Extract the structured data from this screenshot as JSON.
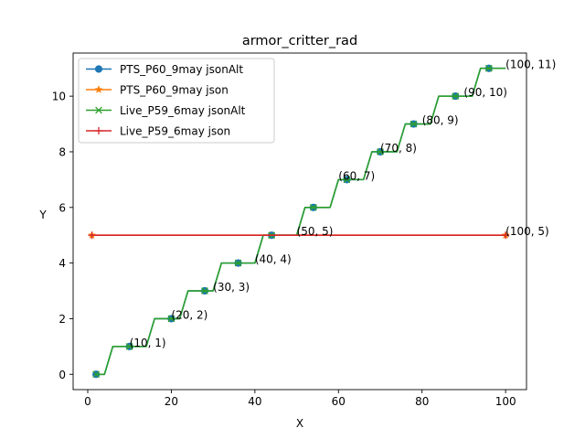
{
  "chart_data": {
    "type": "line",
    "title": "armor_critter_rad",
    "xlabel": "X",
    "ylabel": "Y",
    "xlim": [
      -3.5,
      105
    ],
    "ylim": [
      -0.55,
      11.55
    ],
    "x_ticks": [
      0,
      20,
      40,
      60,
      80,
      100
    ],
    "y_ticks": [
      0,
      2,
      4,
      6,
      8,
      10
    ],
    "grid": false,
    "legend_position": "top-left",
    "series": [
      {
        "name": "PTS_P60_9may jsonAlt",
        "color": "#1f77b4",
        "marker": "circle",
        "marker_x": [
          2,
          10,
          20,
          28,
          36,
          44,
          54,
          62,
          70,
          78,
          88,
          96
        ],
        "marker_y": [
          0,
          1,
          2,
          3,
          4,
          5,
          6,
          7,
          8,
          9,
          10,
          11
        ],
        "line_x": [
          2,
          4,
          6,
          10,
          14,
          16,
          20,
          22,
          24,
          28,
          30,
          32,
          36,
          40,
          42,
          44,
          48,
          50,
          52,
          54,
          58,
          60,
          62,
          66,
          68,
          70,
          74,
          76,
          78,
          82,
          84,
          86,
          88,
          92,
          94,
          96,
          100
        ],
        "line_y": [
          0,
          0,
          1,
          1,
          1,
          2,
          2,
          2,
          3,
          3,
          3,
          4,
          4,
          4,
          5,
          5,
          5,
          5,
          6,
          6,
          6,
          7,
          7,
          7,
          8,
          8,
          8,
          9,
          9,
          9,
          10,
          10,
          10,
          10,
          11,
          11,
          11
        ]
      },
      {
        "name": "PTS_P60_9may json",
        "color": "#ff7f0e",
        "marker": "star",
        "marker_x": [
          1,
          100
        ],
        "marker_y": [
          5,
          5
        ],
        "line_x": [
          1,
          100
        ],
        "line_y": [
          5,
          5
        ]
      },
      {
        "name": "Live_P59_6may jsonAlt",
        "color": "#2ca02c",
        "marker": "x",
        "marker_x": [
          2,
          10,
          20,
          28,
          36,
          44,
          54,
          62,
          70,
          78,
          88,
          96
        ],
        "marker_y": [
          0,
          1,
          2,
          3,
          4,
          5,
          6,
          7,
          8,
          9,
          10,
          11
        ],
        "line_x": [
          2,
          4,
          6,
          10,
          14,
          16,
          20,
          22,
          24,
          28,
          30,
          32,
          36,
          40,
          42,
          44,
          48,
          50,
          52,
          54,
          58,
          60,
          62,
          66,
          68,
          70,
          74,
          76,
          78,
          82,
          84,
          86,
          88,
          92,
          94,
          96,
          100
        ],
        "line_y": [
          0,
          0,
          1,
          1,
          1,
          2,
          2,
          2,
          3,
          3,
          3,
          4,
          4,
          4,
          5,
          5,
          5,
          5,
          6,
          6,
          6,
          7,
          7,
          7,
          8,
          8,
          8,
          9,
          9,
          9,
          10,
          10,
          10,
          10,
          11,
          11,
          11
        ]
      },
      {
        "name": "Live_P59_6may json",
        "color": "#d62728",
        "marker": "plus",
        "marker_x": [
          1,
          100
        ],
        "marker_y": [
          5,
          5
        ],
        "line_x": [
          1,
          100
        ],
        "line_y": [
          5,
          5
        ]
      }
    ],
    "annotations": [
      {
        "text": "(10, 1)",
        "x": 10,
        "y": 1
      },
      {
        "text": "(20, 2)",
        "x": 20,
        "y": 2
      },
      {
        "text": "(30, 3)",
        "x": 30,
        "y": 3
      },
      {
        "text": "(40, 4)",
        "x": 40,
        "y": 4
      },
      {
        "text": "(50, 5)",
        "x": 50,
        "y": 5
      },
      {
        "text": "(60, 7)",
        "x": 60,
        "y": 7
      },
      {
        "text": "(70, 8)",
        "x": 70,
        "y": 8
      },
      {
        "text": "(80, 9)",
        "x": 80,
        "y": 9
      },
      {
        "text": "(90, 10)",
        "x": 90,
        "y": 10
      },
      {
        "text": "(100, 11)",
        "x": 100,
        "y": 11
      },
      {
        "text": "(100, 5)",
        "x": 100,
        "y": 5
      }
    ]
  }
}
